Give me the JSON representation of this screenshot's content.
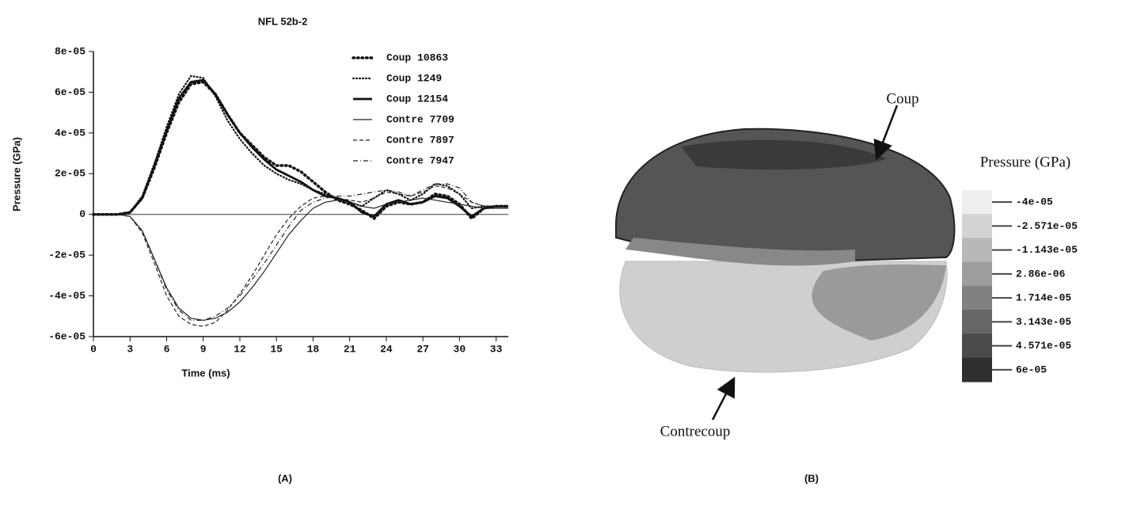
{
  "chart_data": {
    "type": "line",
    "title": "NFL 52b-2",
    "xlabel": "Time (ms)",
    "ylabel": "Pressure (GPa)",
    "x": [
      0,
      1,
      2,
      3,
      4,
      5,
      6,
      7,
      8,
      9,
      10,
      11,
      12,
      13,
      14,
      15,
      16,
      17,
      18,
      19,
      20,
      21,
      22,
      23,
      24,
      25,
      26,
      27,
      28,
      29,
      30,
      31,
      32,
      33,
      34
    ],
    "xlim": [
      0,
      34
    ],
    "xticks": [
      0,
      3,
      6,
      9,
      12,
      15,
      18,
      21,
      24,
      27,
      30,
      33
    ],
    "ylim": [
      -6e-05,
      8e-05
    ],
    "yticks": [
      {
        "value": -6e-05,
        "label": "-6e-05"
      },
      {
        "value": -4e-05,
        "label": "-4e-05"
      },
      {
        "value": -2e-05,
        "label": "-2e-05"
      },
      0,
      {
        "value": 2e-05,
        "label": "2e-05"
      },
      {
        "value": 4e-05,
        "label": "4e-05"
      },
      {
        "value": 6e-05,
        "label": "6e-05"
      },
      {
        "value": 8e-05,
        "label": "8e-05"
      }
    ],
    "zero_line": true,
    "series": [
      {
        "name": "Coup 10863",
        "color": "#111111",
        "style": "dotted-bold",
        "values": [
          0,
          0,
          0,
          1e-06,
          8e-06,
          2.3e-05,
          4e-05,
          5.5e-05,
          6.4e-05,
          6.5e-05,
          5.9e-05,
          4.9e-05,
          4e-05,
          3.4e-05,
          2.8e-05,
          2.4e-05,
          2.4e-05,
          2.1e-05,
          1.6e-05,
          1.1e-05,
          7e-06,
          5e-06,
          2e-06,
          -2e-06,
          4e-06,
          6e-06,
          5e-06,
          6e-06,
          1e-05,
          9e-06,
          5e-06,
          -2e-06,
          3e-06,
          4e-06,
          4e-06
        ]
      },
      {
        "name": "Coup 1249",
        "color": "#111111",
        "style": "dotted",
        "values": [
          0,
          0,
          0,
          1e-06,
          9e-06,
          2.5e-05,
          4.3e-05,
          5.9e-05,
          6.8e-05,
          6.7e-05,
          5.8e-05,
          4.6e-05,
          3.7e-05,
          3e-05,
          2.4e-05,
          2e-05,
          1.7e-05,
          1.5e-05,
          1.2e-05,
          1e-05,
          8e-06,
          6e-06,
          4e-06,
          8e-06,
          1.2e-05,
          1e-05,
          7e-06,
          1e-05,
          1.5e-05,
          1.4e-05,
          1e-05,
          3e-06,
          4e-06,
          4e-06,
          4e-06
        ]
      },
      {
        "name": "Coup 12154",
        "color": "#111111",
        "style": "solid-bold",
        "values": [
          0,
          0,
          0,
          1e-06,
          8e-06,
          2.4e-05,
          4.1e-05,
          5.7e-05,
          6.5e-05,
          6.6e-05,
          5.9e-05,
          4.9e-05,
          4e-05,
          3.3e-05,
          2.7e-05,
          2.2e-05,
          1.9e-05,
          1.6e-05,
          1.2e-05,
          9e-06,
          8e-06,
          6e-06,
          1e-06,
          -1e-06,
          5e-06,
          7e-06,
          5e-06,
          6e-06,
          9e-06,
          8e-06,
          4e-06,
          -1e-06,
          3e-06,
          4e-06,
          4e-06
        ]
      },
      {
        "name": "Contre 7709",
        "color": "#222222",
        "style": "solid",
        "values": [
          0,
          0,
          0,
          -1e-06,
          -8e-06,
          -2.2e-05,
          -3.6e-05,
          -4.6e-05,
          -5.1e-05,
          -5.2e-05,
          -5.1e-05,
          -4.8e-05,
          -4.3e-05,
          -3.6e-05,
          -2.8e-05,
          -1.9e-05,
          -1e-05,
          -3e-06,
          3e-06,
          6e-06,
          7e-06,
          6e-06,
          4e-06,
          3e-06,
          5e-06,
          6e-06,
          7e-06,
          8e-06,
          7e-06,
          6e-06,
          5e-06,
          4e-06,
          3e-06,
          3e-06,
          3e-06
        ]
      },
      {
        "name": "Contre 7897",
        "color": "#222222",
        "style": "dashed",
        "values": [
          0,
          0,
          0,
          -1e-06,
          -9e-06,
          -2.4e-05,
          -4e-05,
          -5e-05,
          -5.4e-05,
          -5.5e-05,
          -5.3e-05,
          -4.7e-05,
          -3.9e-05,
          -3e-05,
          -2e-05,
          -1e-05,
          -2e-06,
          4e-06,
          8e-06,
          9e-06,
          8e-06,
          7e-06,
          6e-06,
          8e-06,
          1.1e-05,
          1e-05,
          9e-06,
          1.1e-05,
          1.4e-05,
          1.3e-05,
          1e-05,
          6e-06,
          4e-06,
          4e-06,
          4e-06
        ]
      },
      {
        "name": "Contre 7947",
        "color": "#222222",
        "style": "dash-dot",
        "values": [
          0,
          0,
          0,
          -1e-06,
          -8e-06,
          -2.2e-05,
          -3.7e-05,
          -4.7e-05,
          -5.2e-05,
          -5.2e-05,
          -5e-05,
          -4.6e-05,
          -4e-05,
          -3.2e-05,
          -2.4e-05,
          -1.5e-05,
          -6e-06,
          2e-06,
          6e-06,
          8e-06,
          9e-06,
          9e-06,
          1e-05,
          1.1e-05,
          1.2e-05,
          1.1e-05,
          9e-06,
          1.2e-05,
          1.5e-05,
          1.5e-05,
          1.3e-05,
          6e-06,
          4e-06,
          4e-06,
          4e-06
        ]
      }
    ]
  },
  "figure_b": {
    "annotations": [
      "Coup",
      "Contrecoup"
    ],
    "colorbar": {
      "title": "Pressure (GPa)",
      "ticks": [
        {
          "value": -4e-05,
          "label": "-4e-05"
        },
        {
          "value": -2.571e-05,
          "label": "-2.571e-05"
        },
        {
          "value": -1.143e-05,
          "label": "-1.143e-05"
        },
        {
          "value": 2.86e-06,
          "label": "2.86e-06"
        },
        {
          "value": 1.714e-05,
          "label": "1.714e-05"
        },
        {
          "value": 3.143e-05,
          "label": "3.143e-05"
        },
        {
          "value": 4.571e-05,
          "label": "4.571e-05"
        },
        {
          "value": 6e-05,
          "label": "6e-05"
        }
      ]
    }
  },
  "panel_labels": [
    "(A)",
    "(B)"
  ]
}
